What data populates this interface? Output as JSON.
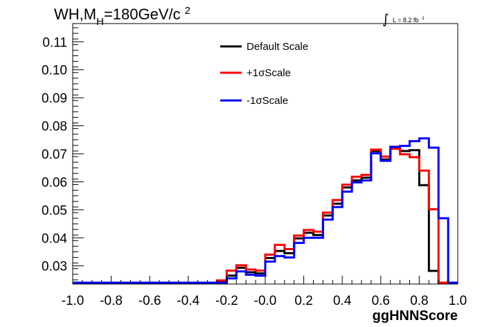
{
  "chart_data": {
    "type": "line",
    "title_parts": {
      "pre": "WH,M",
      "sub": "H",
      "mid": "=180GeV/c",
      "sup": "2"
    },
    "lumi": {
      "integral": "∫",
      "text": "L = 8.2 fb",
      "sup": "-1"
    },
    "xlabel": "ggHNNScore",
    "ylabel": "",
    "xlim": [
      -1.0,
      1.0
    ],
    "ylim": [
      0.0235,
      0.1165
    ],
    "xticks": [
      -1.0,
      -0.8,
      -0.6,
      -0.4,
      -0.2,
      0.0,
      0.2,
      0.4,
      0.6,
      0.8,
      1.0
    ],
    "xtick_labels": [
      "-1.0",
      "-0.8",
      "-0.6",
      "-0.4",
      "-0.2",
      "-0.0",
      "0.2",
      "0.4",
      "0.6",
      "0.8",
      "1.0"
    ],
    "yticks": [
      0.03,
      0.04,
      0.05,
      0.06,
      0.07,
      0.08,
      0.09,
      0.1,
      0.11
    ],
    "ytick_labels": [
      "0.03",
      "0.04",
      "0.05",
      "0.06",
      "0.07",
      "0.08",
      "0.09",
      "0.10",
      "0.11"
    ],
    "legend_position": "top-center",
    "grid": false,
    "bin_edges": [
      -1.0,
      -0.95,
      -0.9,
      -0.85,
      -0.8,
      -0.75,
      -0.7,
      -0.65,
      -0.6,
      -0.55,
      -0.5,
      -0.45,
      -0.4,
      -0.35,
      -0.3,
      -0.25,
      -0.2,
      -0.15,
      -0.1,
      -0.05,
      0.0,
      0.05,
      0.1,
      0.15,
      0.2,
      0.25,
      0.3,
      0.35,
      0.4,
      0.45,
      0.5,
      0.55,
      0.6,
      0.65,
      0.7,
      0.75,
      0.8,
      0.85,
      0.9,
      0.95,
      1.0
    ],
    "series": [
      {
        "name": "Default Scale",
        "color": "#000000",
        "values": [
          0.024,
          0.024,
          0.024,
          0.024,
          0.024,
          0.024,
          0.024,
          0.024,
          0.024,
          0.024,
          0.024,
          0.024,
          0.024,
          0.024,
          0.024,
          0.0245,
          0.0265,
          0.0293,
          0.0277,
          0.0273,
          0.0328,
          0.0353,
          0.0345,
          0.0398,
          0.0418,
          0.041,
          0.048,
          0.0522,
          0.058,
          0.0605,
          0.0615,
          0.071,
          0.068,
          0.0722,
          0.071,
          0.0713,
          0.0588,
          0.0282,
          0.024,
          0.024
        ]
      },
      {
        "name": "+1σScale",
        "color": "#ff0000",
        "values": [
          0.024,
          0.024,
          0.024,
          0.024,
          0.024,
          0.024,
          0.024,
          0.024,
          0.024,
          0.024,
          0.024,
          0.024,
          0.024,
          0.024,
          0.024,
          0.0248,
          0.0283,
          0.0302,
          0.0287,
          0.0283,
          0.034,
          0.0375,
          0.036,
          0.0408,
          0.0428,
          0.0422,
          0.049,
          0.0535,
          0.059,
          0.0618,
          0.0625,
          0.0715,
          0.069,
          0.0718,
          0.0698,
          0.0688,
          0.064,
          0.0502,
          0.024,
          0.024
        ]
      },
      {
        "name": "-1σScale",
        "color": "#0000ff",
        "values": [
          0.024,
          0.024,
          0.024,
          0.024,
          0.024,
          0.024,
          0.024,
          0.024,
          0.024,
          0.024,
          0.024,
          0.024,
          0.024,
          0.024,
          0.024,
          0.024,
          0.0255,
          0.028,
          0.0268,
          0.0265,
          0.0315,
          0.0335,
          0.033,
          0.0382,
          0.04,
          0.04,
          0.0465,
          0.051,
          0.0565,
          0.0598,
          0.0605,
          0.0702,
          0.0675,
          0.0725,
          0.0728,
          0.0745,
          0.0755,
          0.0722,
          0.047,
          0.024
        ]
      }
    ]
  }
}
